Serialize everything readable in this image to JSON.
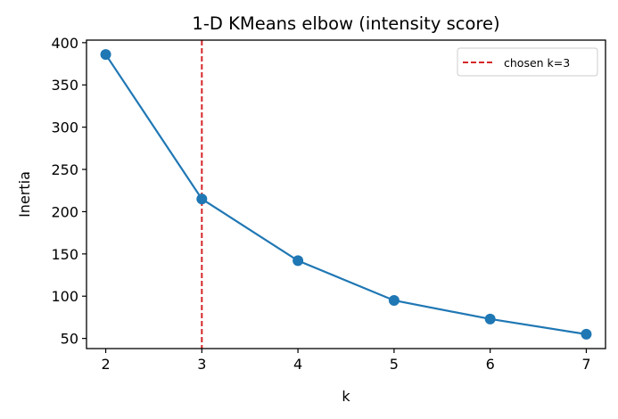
{
  "chart_data": {
    "type": "line",
    "title": "1-D KMeans elbow (intensity score)",
    "xlabel": "k",
    "ylabel": "Inertia",
    "x": [
      2,
      3,
      4,
      5,
      6,
      7
    ],
    "series": [
      {
        "name": "inertia",
        "values": [
          386,
          215,
          142,
          95,
          73,
          55
        ],
        "color": "#1f77b4",
        "marker": "o"
      }
    ],
    "xticks": [
      2,
      3,
      4,
      5,
      6,
      7
    ],
    "yticks": [
      50,
      100,
      150,
      200,
      250,
      300,
      350,
      400
    ],
    "xlim": [
      1.8,
      7.2
    ],
    "ylim": [
      38,
      403
    ],
    "grid": false,
    "annotations": [
      {
        "type": "vline",
        "x": 3,
        "color": "#d62728",
        "style": "dashed",
        "label": "chosen k=3"
      }
    ],
    "legend": {
      "position": "upper right",
      "entries": [
        "chosen k=3"
      ]
    }
  },
  "labels": {
    "title": "1-D KMeans elbow (intensity score)",
    "xlabel": "k",
    "ylabel": "Inertia",
    "legend_entry": "chosen k=3"
  }
}
